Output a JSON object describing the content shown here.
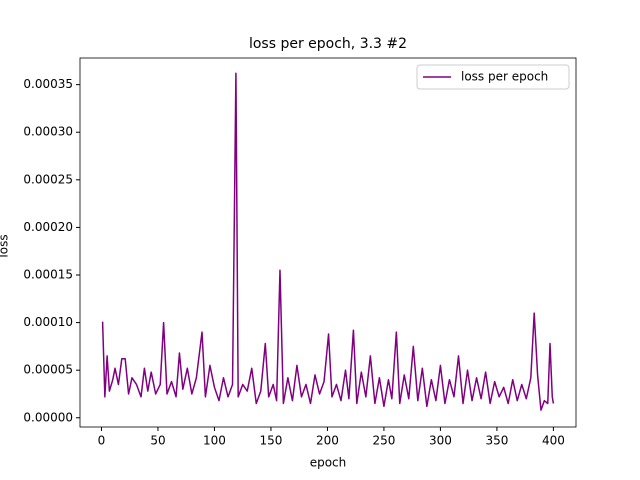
{
  "chart_data": {
    "type": "line",
    "title": "loss per epoch, 3.3 #2",
    "x_label": "epoch",
    "y_label": "loss",
    "x": [
      1,
      3,
      5,
      7,
      10,
      12,
      15,
      18,
      21,
      24,
      27,
      31,
      35,
      38,
      41,
      44,
      48,
      52,
      55,
      58,
      62,
      66,
      69,
      72,
      76,
      80,
      84,
      89,
      92,
      96,
      100,
      104,
      108,
      112,
      116,
      119,
      121,
      125,
      129,
      133,
      137,
      141,
      145,
      148,
      152,
      155,
      158,
      161,
      165,
      169,
      173,
      177,
      181,
      185,
      189,
      193,
      197,
      201,
      204,
      208,
      212,
      216,
      219,
      223,
      226,
      230,
      234,
      238,
      242,
      246,
      250,
      254,
      257,
      261,
      264,
      268,
      272,
      276,
      280,
      284,
      288,
      292,
      296,
      300,
      304,
      308,
      312,
      316,
      320,
      324,
      328,
      332,
      336,
      340,
      344,
      348,
      352,
      356,
      360,
      364,
      368,
      372,
      376,
      380,
      383,
      386,
      389,
      392,
      395,
      397,
      399,
      400
    ],
    "series": [
      {
        "name": "loss per epoch",
        "color": "#800080",
        "values": [
          0.000101,
          2.2e-05,
          6.5e-05,
          2.8e-05,
          4e-05,
          5.2e-05,
          3.5e-05,
          6.2e-05,
          6.2e-05,
          2.5e-05,
          4.2e-05,
          3.5e-05,
          2.2e-05,
          5.2e-05,
          2.8e-05,
          4.8e-05,
          2.5e-05,
          3.5e-05,
          0.0001,
          2.5e-05,
          3.8e-05,
          2.2e-05,
          6.8e-05,
          3e-05,
          5.2e-05,
          2.5e-05,
          4.2e-05,
          9e-05,
          2.2e-05,
          5.5e-05,
          3.2e-05,
          1.8e-05,
          4.2e-05,
          2.2e-05,
          3.5e-05,
          0.000362,
          2.2e-05,
          3.5e-05,
          2.8e-05,
          5.2e-05,
          1.5e-05,
          2.8e-05,
          7.8e-05,
          2.2e-05,
          3.5e-05,
          1.8e-05,
          0.000155,
          1.5e-05,
          4.2e-05,
          1.8e-05,
          5.5e-05,
          2.2e-05,
          3.5e-05,
          1.5e-05,
          4.5e-05,
          2.5e-05,
          3.8e-05,
          8.8e-05,
          2.2e-05,
          3.5e-05,
          1.8e-05,
          5e-05,
          2e-05,
          9.2e-05,
          1.5e-05,
          4.8e-05,
          2.2e-05,
          6.5e-05,
          1.5e-05,
          4.2e-05,
          1.2e-05,
          4e-05,
          2e-05,
          9e-05,
          1.5e-05,
          4.5e-05,
          2e-05,
          7.5e-05,
          1.8e-05,
          5.2e-05,
          1.2e-05,
          4e-05,
          1.8e-05,
          5.5e-05,
          1.5e-05,
          4e-05,
          2.2e-05,
          6.5e-05,
          1.5e-05,
          5e-05,
          1.8e-05,
          4.2e-05,
          2e-05,
          4.8e-05,
          1.5e-05,
          3.8e-05,
          2.2e-05,
          3.2e-05,
          1.5e-05,
          4e-05,
          1.8e-05,
          3.5e-05,
          2e-05,
          4.2e-05,
          0.00011,
          4.5e-05,
          8e-06,
          1.8e-05,
          1.5e-05,
          7.8e-05,
          2.2e-05,
          1.5e-05
        ]
      }
    ],
    "xlim": [
      -19,
      420
    ],
    "ylim": [
      -9.7e-06,
      0.000378
    ],
    "xticks": [
      0,
      50,
      100,
      150,
      200,
      250,
      300,
      350,
      400
    ],
    "yticks": [
      {
        "value": 0,
        "label": "0.00000"
      },
      5e-05,
      {
        "value": 0.0001,
        "label": "0.00010"
      },
      0.00015,
      {
        "value": 0.0002,
        "label": "0.00020"
      },
      0.00025,
      {
        "value": 0.0003,
        "label": "0.00030"
      },
      0.00035
    ],
    "legend": "upper right"
  }
}
